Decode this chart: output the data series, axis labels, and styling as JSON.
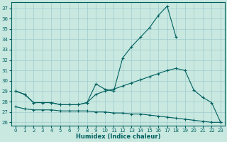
{
  "xlabel": "Humidex (Indice chaleur)",
  "bg_color": "#c8e8e0",
  "line_color": "#006060",
  "grid_color": "#a0cccc",
  "xlim": [
    -0.5,
    23.5
  ],
  "ylim": [
    25.7,
    37.6
  ],
  "yticks": [
    26,
    27,
    28,
    29,
    30,
    31,
    32,
    33,
    34,
    35,
    36,
    37
  ],
  "xticks": [
    0,
    1,
    2,
    3,
    4,
    5,
    6,
    7,
    8,
    9,
    10,
    11,
    12,
    13,
    14,
    15,
    16,
    17,
    18,
    19,
    20,
    21,
    22,
    23
  ],
  "line1_x": [
    0,
    1,
    2,
    3,
    4,
    5,
    6,
    7,
    8,
    9,
    10,
    11,
    12,
    13,
    14,
    15,
    16,
    17,
    18,
    19,
    20,
    21,
    22,
    23
  ],
  "line1_y": [
    29.0,
    28.7,
    27.9,
    27.9,
    27.9,
    27.7,
    27.7,
    27.7,
    27.9,
    29.7,
    29.2,
    29.0,
    32.2,
    33.3,
    34.2,
    35.1,
    36.3,
    37.2,
    34.2,
    null,
    null,
    null,
    null,
    null
  ],
  "line2_x": [
    0,
    1,
    2,
    3,
    4,
    5,
    6,
    7,
    8,
    9,
    10,
    11,
    12,
    13,
    14,
    15,
    16,
    17,
    18,
    19,
    20,
    21,
    22,
    23
  ],
  "line2_y": [
    29.0,
    28.7,
    27.9,
    27.9,
    27.9,
    27.7,
    27.7,
    27.7,
    27.9,
    28.7,
    29.0,
    29.2,
    29.5,
    29.8,
    30.1,
    30.4,
    30.7,
    31.0,
    31.2,
    31.0,
    29.1,
    28.4,
    27.9,
    26.0
  ],
  "line3_x": [
    0,
    1,
    2,
    3,
    4,
    5,
    6,
    7,
    8,
    9,
    10,
    11,
    12,
    13,
    14,
    15,
    16,
    17,
    18,
    19,
    20,
    21,
    22,
    23
  ],
  "line3_y": [
    27.5,
    27.3,
    27.2,
    27.2,
    27.2,
    27.1,
    27.1,
    27.1,
    27.1,
    27.0,
    27.0,
    26.9,
    26.9,
    26.8,
    26.8,
    26.7,
    26.6,
    26.5,
    26.4,
    26.3,
    26.2,
    26.1,
    26.0,
    26.0
  ]
}
